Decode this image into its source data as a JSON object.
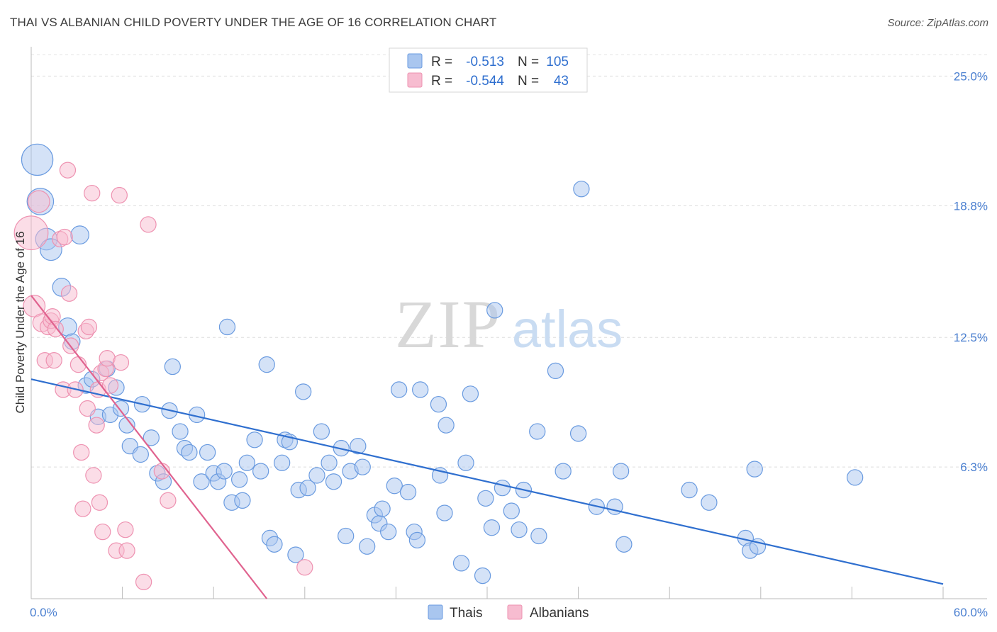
{
  "header": {
    "title": "THAI VS ALBANIAN CHILD POVERTY UNDER THE AGE OF 16 CORRELATION CHART",
    "source": "Source: ZipAtlas.com"
  },
  "watermark": {
    "zip": "ZIP",
    "atlas": "atlas"
  },
  "legend": {
    "entries": [
      {
        "r_label": "R =",
        "r_value": "-0.513",
        "n_label": "N =",
        "n_value": "105"
      },
      {
        "r_label": "R =",
        "r_value": "-0.544",
        "n_label": "N =",
        "n_value": "43"
      }
    ]
  },
  "bottom_legend": {
    "thais": "Thais",
    "albanians": "Albanians"
  },
  "chart_data": {
    "type": "scatter",
    "title": "THAI VS ALBANIAN CHILD POVERTY UNDER THE AGE OF 16 CORRELATION CHART",
    "xlabel": "",
    "ylabel": "Child Poverty Under the Age of 16",
    "xlim": [
      0,
      60
    ],
    "ylim": [
      0,
      26.2
    ],
    "x_tick_labels": [
      "0.0%",
      "60.0%"
    ],
    "y_ticks": [
      6.3,
      12.5,
      18.8,
      25.0
    ],
    "y_tick_labels": [
      "6.3%",
      "12.5%",
      "18.8%",
      "25.0%"
    ],
    "grid": true,
    "legend_position": "top-center",
    "colors": {
      "thais_fill": "#a9c6ef",
      "thais_stroke": "#6a9be0",
      "thais_line": "#2f6fcf",
      "albanians_fill": "#f7bcd0",
      "albanians_stroke": "#ee92b1",
      "albanians_line": "#e0638f",
      "value_text": "#2f6fcf"
    },
    "series": [
      {
        "name": "Thais",
        "r": -0.513,
        "n": 105,
        "trend": {
          "x": [
            0,
            60
          ],
          "y": [
            10.5,
            0.7
          ]
        },
        "points": [
          [
            0.4,
            21.0,
            2.6
          ],
          [
            0.6,
            19.0,
            2.2
          ],
          [
            1.0,
            17.2,
            1.8
          ],
          [
            1.3,
            16.7,
            1.8
          ],
          [
            3.2,
            17.4,
            1.5
          ],
          [
            2.0,
            14.9,
            1.5
          ],
          [
            2.4,
            13.0,
            1.5
          ],
          [
            2.7,
            12.3,
            1.3
          ],
          [
            3.6,
            10.2,
            1.3
          ],
          [
            4.0,
            10.5,
            1.3
          ],
          [
            5.0,
            11.0,
            1.3
          ],
          [
            5.6,
            10.1,
            1.3
          ],
          [
            4.4,
            8.7,
            1.3
          ],
          [
            5.2,
            8.8,
            1.3
          ],
          [
            5.9,
            9.1,
            1.3
          ],
          [
            6.3,
            8.3,
            1.3
          ],
          [
            7.3,
            9.3,
            1.3
          ],
          [
            9.1,
            9.0,
            1.3
          ],
          [
            6.5,
            7.3,
            1.3
          ],
          [
            7.2,
            6.9,
            1.3
          ],
          [
            7.9,
            7.7,
            1.3
          ],
          [
            8.3,
            6.0,
            1.3
          ],
          [
            8.7,
            5.6,
            1.3
          ],
          [
            9.3,
            11.1,
            1.3
          ],
          [
            9.8,
            8.0,
            1.3
          ],
          [
            10.1,
            7.2,
            1.3
          ],
          [
            10.4,
            7.0,
            1.3
          ],
          [
            10.9,
            8.8,
            1.3
          ],
          [
            11.2,
            5.6,
            1.3
          ],
          [
            11.6,
            7.0,
            1.3
          ],
          [
            12.0,
            6.0,
            1.3
          ],
          [
            12.3,
            5.6,
            1.3
          ],
          [
            12.7,
            6.1,
            1.3
          ],
          [
            12.9,
            13.0,
            1.3
          ],
          [
            13.2,
            4.6,
            1.3
          ],
          [
            13.7,
            5.7,
            1.3
          ],
          [
            13.9,
            4.7,
            1.3
          ],
          [
            14.2,
            6.5,
            1.3
          ],
          [
            14.7,
            7.6,
            1.3
          ],
          [
            15.1,
            6.1,
            1.3
          ],
          [
            15.5,
            11.2,
            1.3
          ],
          [
            15.7,
            2.9,
            1.3
          ],
          [
            16.0,
            2.6,
            1.3
          ],
          [
            16.5,
            6.5,
            1.3
          ],
          [
            16.7,
            7.6,
            1.3
          ],
          [
            17.0,
            7.5,
            1.3
          ],
          [
            17.4,
            2.1,
            1.3
          ],
          [
            17.6,
            5.2,
            1.3
          ],
          [
            17.9,
            9.9,
            1.3
          ],
          [
            18.2,
            5.3,
            1.3
          ],
          [
            18.8,
            5.9,
            1.3
          ],
          [
            19.1,
            8.0,
            1.3
          ],
          [
            19.6,
            6.5,
            1.3
          ],
          [
            19.9,
            5.6,
            1.3
          ],
          [
            20.4,
            7.2,
            1.3
          ],
          [
            20.7,
            3.0,
            1.3
          ],
          [
            21.0,
            6.1,
            1.3
          ],
          [
            21.5,
            7.3,
            1.3
          ],
          [
            21.8,
            6.3,
            1.3
          ],
          [
            22.1,
            2.5,
            1.3
          ],
          [
            22.6,
            4.0,
            1.3
          ],
          [
            22.9,
            3.6,
            1.3
          ],
          [
            23.1,
            4.3,
            1.3
          ],
          [
            23.5,
            3.2,
            1.3
          ],
          [
            23.9,
            5.4,
            1.3
          ],
          [
            24.2,
            10.0,
            1.3
          ],
          [
            24.8,
            5.1,
            1.3
          ],
          [
            25.2,
            3.2,
            1.3
          ],
          [
            25.4,
            2.8,
            1.3
          ],
          [
            25.6,
            10.0,
            1.3
          ],
          [
            26.8,
            9.3,
            1.3
          ],
          [
            26.9,
            5.9,
            1.3
          ],
          [
            27.2,
            4.1,
            1.3
          ],
          [
            27.3,
            8.3,
            1.3
          ],
          [
            28.3,
            1.7,
            1.3
          ],
          [
            28.6,
            6.5,
            1.3
          ],
          [
            28.9,
            9.8,
            1.3
          ],
          [
            29.7,
            1.1,
            1.3
          ],
          [
            29.9,
            4.8,
            1.3
          ],
          [
            30.3,
            3.4,
            1.3
          ],
          [
            30.5,
            13.8,
            1.3
          ],
          [
            31.0,
            5.3,
            1.3
          ],
          [
            31.6,
            4.2,
            1.3
          ],
          [
            32.1,
            3.3,
            1.3
          ],
          [
            32.4,
            5.2,
            1.3
          ],
          [
            33.4,
            3.0,
            1.3
          ],
          [
            33.3,
            8.0,
            1.3
          ],
          [
            34.5,
            10.9,
            1.3
          ],
          [
            35.0,
            6.1,
            1.3
          ],
          [
            36.0,
            7.9,
            1.3
          ],
          [
            36.2,
            19.6,
            1.3
          ],
          [
            37.2,
            4.4,
            1.3
          ],
          [
            38.4,
            4.4,
            1.3
          ],
          [
            38.8,
            6.1,
            1.3
          ],
          [
            39.0,
            2.6,
            1.3
          ],
          [
            43.3,
            5.2,
            1.3
          ],
          [
            44.6,
            4.6,
            1.3
          ],
          [
            47.0,
            2.9,
            1.3
          ],
          [
            47.3,
            2.3,
            1.3
          ],
          [
            47.6,
            6.2,
            1.3
          ],
          [
            47.8,
            2.5,
            1.3
          ],
          [
            54.2,
            5.8,
            1.3
          ]
        ]
      },
      {
        "name": "Albanians",
        "r": -0.544,
        "n": 43,
        "trend": {
          "x": [
            0,
            15.5
          ],
          "y": [
            14.5,
            0
          ]
        },
        "points": [
          [
            0.0,
            17.5,
            2.8
          ],
          [
            0.2,
            14.0,
            1.8
          ],
          [
            0.5,
            19.0,
            1.8
          ],
          [
            0.7,
            13.2,
            1.5
          ],
          [
            0.9,
            11.4,
            1.3
          ],
          [
            1.1,
            13.0,
            1.3
          ],
          [
            1.3,
            13.3,
            1.3
          ],
          [
            1.4,
            13.5,
            1.3
          ],
          [
            1.5,
            11.4,
            1.3
          ],
          [
            1.6,
            12.9,
            1.3
          ],
          [
            1.9,
            17.2,
            1.3
          ],
          [
            2.2,
            17.3,
            1.3
          ],
          [
            2.1,
            10.0,
            1.3
          ],
          [
            2.4,
            20.5,
            1.3
          ],
          [
            2.5,
            14.6,
            1.3
          ],
          [
            2.6,
            12.1,
            1.3
          ],
          [
            2.9,
            10.0,
            1.3
          ],
          [
            3.1,
            11.2,
            1.3
          ],
          [
            3.3,
            7.0,
            1.3
          ],
          [
            3.4,
            4.3,
            1.3
          ],
          [
            3.6,
            12.8,
            1.3
          ],
          [
            3.7,
            9.1,
            1.3
          ],
          [
            3.8,
            13.0,
            1.3
          ],
          [
            4.0,
            19.4,
            1.3
          ],
          [
            4.1,
            5.9,
            1.3
          ],
          [
            4.3,
            8.3,
            1.3
          ],
          [
            4.4,
            10.0,
            1.3
          ],
          [
            4.5,
            4.6,
            1.3
          ],
          [
            4.6,
            10.8,
            1.3
          ],
          [
            4.7,
            3.2,
            1.3
          ],
          [
            4.9,
            11.0,
            1.3
          ],
          [
            5.0,
            11.5,
            1.3
          ],
          [
            5.2,
            10.2,
            1.3
          ],
          [
            5.6,
            2.3,
            1.3
          ],
          [
            5.8,
            19.3,
            1.3
          ],
          [
            5.9,
            11.3,
            1.3
          ],
          [
            6.2,
            3.3,
            1.3
          ],
          [
            6.3,
            2.3,
            1.3
          ],
          [
            7.4,
            0.8,
            1.3
          ],
          [
            7.7,
            17.9,
            1.3
          ],
          [
            8.6,
            6.1,
            1.3
          ],
          [
            9.0,
            4.7,
            1.3
          ],
          [
            18.0,
            1.5,
            1.3
          ]
        ]
      }
    ]
  }
}
